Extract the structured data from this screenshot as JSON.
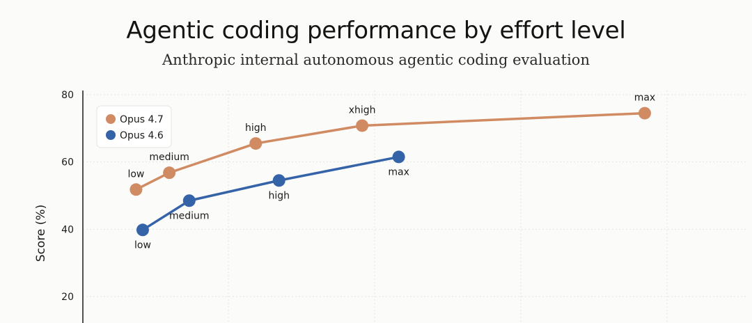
{
  "chart_data": {
    "type": "line",
    "title": "Agentic coding performance by effort level",
    "subtitle": "Anthropic internal autonomous agentic coding evaluation",
    "xlabel": "",
    "ylabel": "Score (%)",
    "yticks": [
      20,
      40,
      60,
      80
    ],
    "ylim": [
      16,
      80.5
    ],
    "xlim": [
      0,
      10
    ],
    "grid": true,
    "legend_position": "top-left",
    "series": [
      {
        "name": "Opus 4.7",
        "color": "#d18b63",
        "points": [
          {
            "x": 0.8,
            "y": 51.8,
            "label": "low",
            "label_pos": "above"
          },
          {
            "x": 1.3,
            "y": 56.8,
            "label": "medium",
            "label_pos": "above"
          },
          {
            "x": 2.6,
            "y": 65.5,
            "label": "high",
            "label_pos": "above"
          },
          {
            "x": 4.2,
            "y": 70.8,
            "label": "xhigh",
            "label_pos": "above"
          },
          {
            "x": 8.45,
            "y": 74.5,
            "label": "max",
            "label_pos": "above"
          }
        ]
      },
      {
        "name": "Opus 4.6",
        "color": "#3563a8",
        "points": [
          {
            "x": 0.9,
            "y": 39.8,
            "label": "low",
            "label_pos": "below"
          },
          {
            "x": 1.6,
            "y": 48.5,
            "label": "medium",
            "label_pos": "below"
          },
          {
            "x": 2.95,
            "y": 54.5,
            "label": "high",
            "label_pos": "below"
          },
          {
            "x": 4.75,
            "y": 61.5,
            "label": "max",
            "label_pos": "below"
          }
        ]
      }
    ]
  },
  "colors": {
    "axis": "#1a1a18",
    "grid": "#e3e3df",
    "text": "#1a1a18"
  }
}
